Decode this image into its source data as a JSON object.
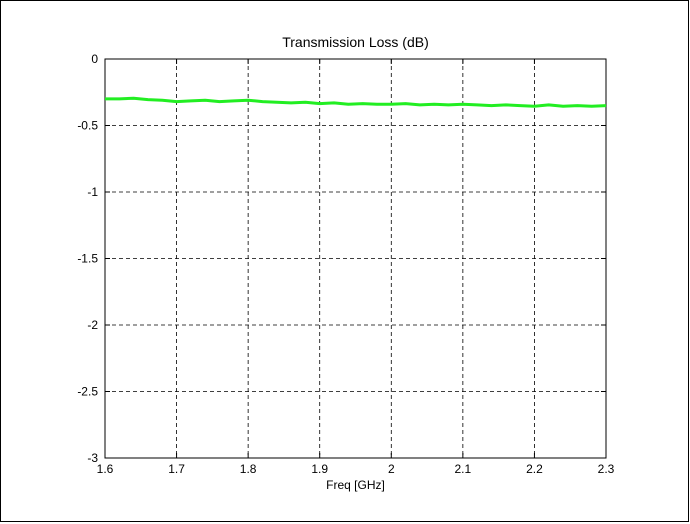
{
  "chart_data": {
    "type": "line",
    "title": "Transmission Loss (dB)",
    "xlabel": "Freq [GHz]",
    "ylabel": "",
    "xlim": [
      1.6,
      2.3
    ],
    "ylim": [
      -3,
      0
    ],
    "grid": true,
    "x_ticks": [
      "1.6",
      "1.7",
      "1.8",
      "1.9",
      "2",
      "2.1",
      "2.2",
      "2.3"
    ],
    "y_ticks": [
      "0",
      "-0.5",
      "-1",
      "-1.5",
      "-2",
      "-2.5",
      "-3"
    ],
    "series": [
      {
        "color": "#22ee22",
        "x": [
          1.6,
          1.62,
          1.64,
          1.66,
          1.68,
          1.7,
          1.72,
          1.74,
          1.76,
          1.78,
          1.8,
          1.82,
          1.84,
          1.86,
          1.88,
          1.9,
          1.92,
          1.94,
          1.96,
          1.98,
          2.0,
          2.02,
          2.04,
          2.06,
          2.08,
          2.1,
          2.12,
          2.14,
          2.16,
          2.18,
          2.2,
          2.22,
          2.24,
          2.26,
          2.28,
          2.3
        ],
        "y": [
          -0.3,
          -0.3,
          -0.295,
          -0.305,
          -0.31,
          -0.32,
          -0.315,
          -0.31,
          -0.32,
          -0.315,
          -0.31,
          -0.32,
          -0.325,
          -0.33,
          -0.325,
          -0.335,
          -0.33,
          -0.34,
          -0.335,
          -0.34,
          -0.34,
          -0.335,
          -0.345,
          -0.34,
          -0.345,
          -0.34,
          -0.345,
          -0.35,
          -0.345,
          -0.35,
          -0.355,
          -0.345,
          -0.355,
          -0.35,
          -0.355,
          -0.35
        ]
      }
    ]
  }
}
